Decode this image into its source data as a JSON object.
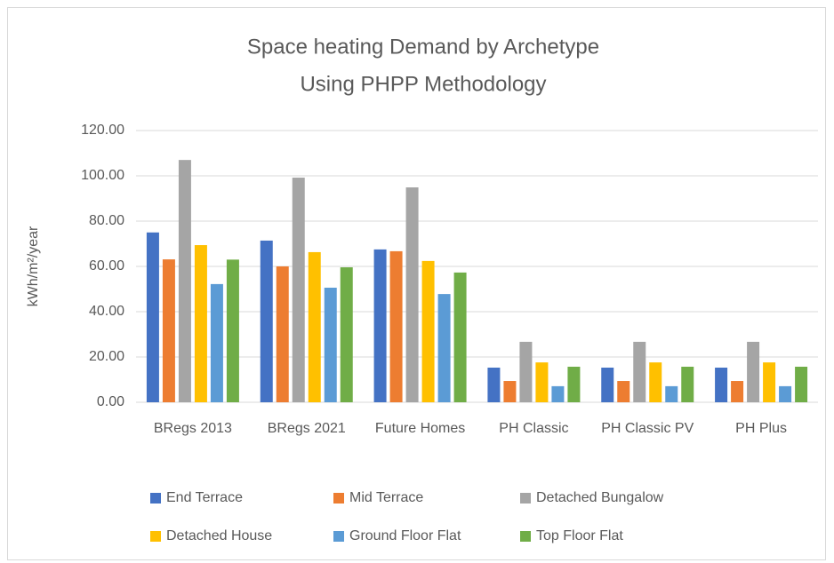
{
  "chart_data": {
    "type": "bar",
    "title": [
      "Space heating Demand by Archetype",
      "Using PHPP Methodology"
    ],
    "y_label": "kWh/m²/year",
    "categories": [
      "BRegs 2013",
      "BRegs 2021",
      "Future Homes",
      "PH Classic",
      "PH Classic PV",
      "PH Plus"
    ],
    "series": [
      {
        "name": "End Terrace",
        "color": "#4472c4",
        "values": [
          75,
          71.4,
          67.5,
          15.3,
          15.3,
          15.3
        ]
      },
      {
        "name": "Mid Terrace",
        "color": "#ed7d31",
        "values": [
          63.1,
          60,
          66.7,
          9.4,
          9.4,
          9.4
        ]
      },
      {
        "name": "Detached Bungalow",
        "color": "#a5a5a5",
        "values": [
          107,
          99.2,
          94.9,
          26.7,
          26.7,
          26.7
        ]
      },
      {
        "name": "Detached House",
        "color": "#ffc000",
        "values": [
          69.4,
          66.3,
          62.4,
          17.6,
          17.6,
          17.6
        ]
      },
      {
        "name": "Ground Floor Flat",
        "color": "#5b9bd5",
        "values": [
          52.2,
          50.6,
          47.8,
          7.1,
          7.1,
          7.1
        ]
      },
      {
        "name": "Top Floor Flat",
        "color": "#70ad47",
        "values": [
          63,
          59.6,
          57.3,
          15.7,
          15.7,
          15.7
        ]
      }
    ],
    "ylim": [
      0,
      120
    ],
    "yticks": [
      {
        "value": 0,
        "label": "0.00"
      },
      {
        "value": 20,
        "label": "20.00"
      },
      {
        "value": 40,
        "label": "40.00"
      },
      {
        "value": 60,
        "label": "60.00"
      },
      {
        "value": 80,
        "label": "80.00"
      },
      {
        "value": 100,
        "label": "100.00"
      },
      {
        "value": 120,
        "label": "120.00"
      }
    ],
    "grid": true,
    "legend": "bottom"
  }
}
